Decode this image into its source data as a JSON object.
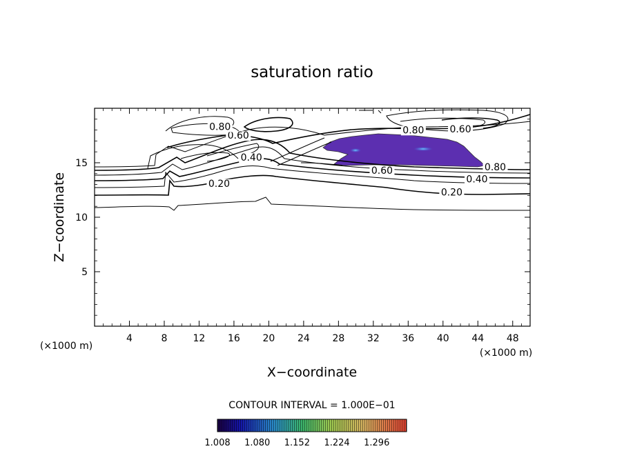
{
  "chart_data": {
    "type": "contour",
    "title": "saturation ratio",
    "xlabel": "X−coordinate",
    "ylabel": "Z−coordinate",
    "x_unit": "(×1000 m)",
    "y_unit": "(×1000 m)",
    "xlim": [
      0,
      50
    ],
    "ylim": [
      0,
      20
    ],
    "x_ticks": [
      4,
      8,
      12,
      16,
      20,
      24,
      28,
      32,
      36,
      40,
      44,
      48
    ],
    "x_tick_labels": [
      "4",
      "8",
      "12",
      "16",
      "20",
      "24",
      "28",
      "32",
      "36",
      "40",
      "44",
      "48"
    ],
    "y_ticks": [
      5,
      10,
      15
    ],
    "y_tick_labels": [
      "5",
      "10",
      "15"
    ],
    "contour_labels": [
      {
        "text": "0.20",
        "x": 14.3,
        "y": 12.8
      },
      {
        "text": "0.40",
        "x": 18.0,
        "y": 15.2
      },
      {
        "text": "0.60",
        "x": 16.5,
        "y": 17.2
      },
      {
        "text": "0.80",
        "x": 14.4,
        "y": 18.0
      },
      {
        "text": "0.60",
        "x": 33.0,
        "y": 14.0
      },
      {
        "text": "0.80",
        "x": 46.0,
        "y": 14.3
      },
      {
        "text": "0.40",
        "x": 43.9,
        "y": 13.2
      },
      {
        "text": "0.20",
        "x": 41.0,
        "y": 12.0
      },
      {
        "text": "0.80",
        "x": 36.6,
        "y": 17.7
      },
      {
        "text": "0.60",
        "x": 42.0,
        "y": 17.8
      }
    ],
    "contour_interval_text": "CONTOUR INTERVAL = 1.000E−01",
    "colorbar": {
      "tick_labels": [
        "1.008",
        "1.080",
        "1.152",
        "1.224",
        "1.296"
      ],
      "min": 1.008,
      "max": 1.35
    },
    "shaded_region_color": "#5c2fb0"
  }
}
